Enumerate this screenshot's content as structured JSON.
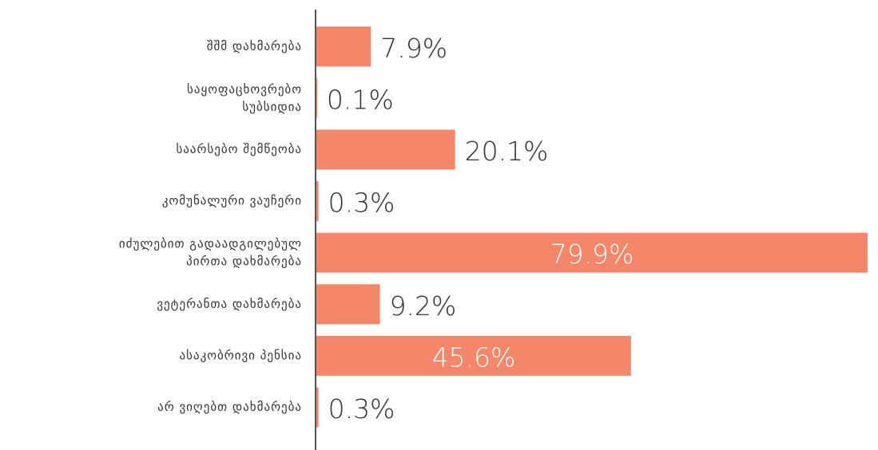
{
  "chart_data": {
    "type": "bar",
    "orientation": "horizontal",
    "color": "#f4876a",
    "categories": [
      "შშმ დახმარება",
      "საყოფაცხოვრებო სუბსიდია",
      "საარსებო შემწეობა",
      "კომუნალური ვაუჩერი",
      "იძულებით გადაადგილებულ პირთა დახმარება",
      "ვეტერანთა დახმარება",
      "ასაკობრივი პენსია",
      "არ ვიღებთ დახმარება"
    ],
    "values": [
      7.9,
      0.1,
      20.1,
      0.3,
      79.9,
      9.2,
      45.6,
      0.3
    ],
    "value_labels": [
      "7.9%",
      "0.1%",
      "20.1%",
      "0.3%",
      "79.9%",
      "9.2%",
      "45.6%",
      "0.3%"
    ]
  }
}
